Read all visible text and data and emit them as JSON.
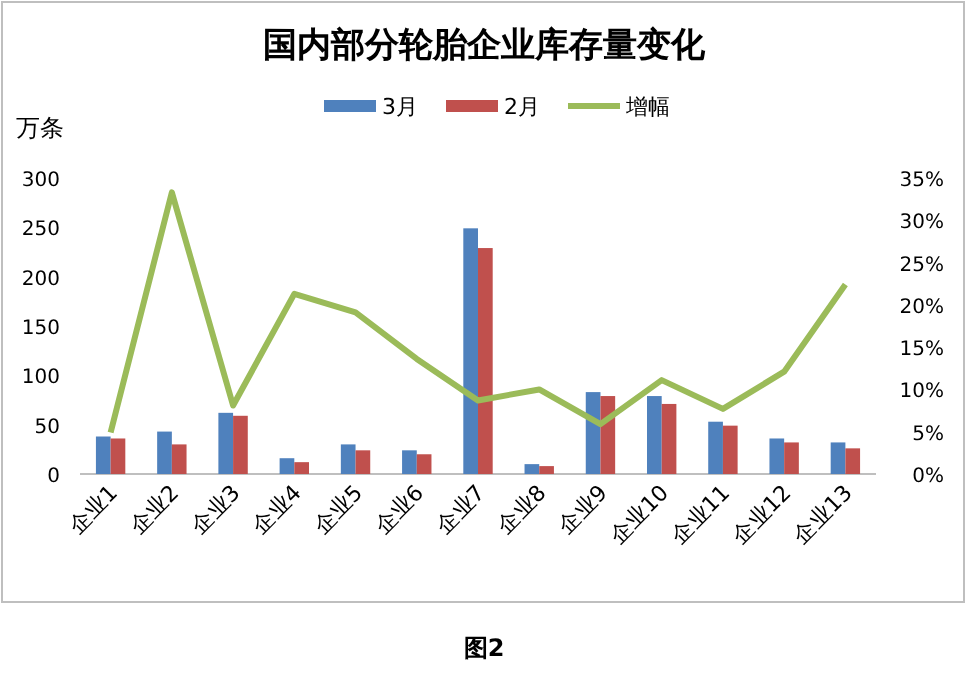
{
  "chart_data": {
    "type": "bar",
    "title": "国内部分轮胎企业库存量变化",
    "ylabel": "万条",
    "categories": [
      "企业1",
      "企业2",
      "企业3",
      "企业4",
      "企业5",
      "企业6",
      "企业7",
      "企业8",
      "企业9",
      "企业10",
      "企业11",
      "企业12",
      "企业13"
    ],
    "series": [
      {
        "name": "3月",
        "color": "#4f81bd",
        "values": [
          38,
          43,
          62,
          16,
          30,
          24,
          249,
          10,
          83,
          79,
          53,
          36,
          32
        ]
      },
      {
        "name": "2月",
        "color": "#c0504d",
        "values": [
          36,
          30,
          59,
          12,
          24,
          20,
          229,
          8,
          79,
          71,
          49,
          32,
          26
        ]
      },
      {
        "name": "增幅",
        "type": "line",
        "axis": "y2",
        "color": "#9bbb59",
        "values": [
          4.9,
          33.3,
          8.1,
          21.3,
          19.1,
          13.6,
          8.7,
          10,
          5.9,
          11.1,
          7.7,
          12.1,
          22.4
        ]
      }
    ],
    "ylim": [
      0,
      300
    ],
    "yticks": [
      0,
      50,
      100,
      150,
      200,
      250,
      300
    ],
    "y2lim": [
      0,
      35
    ],
    "y2ticks": [
      {
        "value": 0,
        "label": "0%"
      },
      {
        "value": 5,
        "label": "5%"
      },
      {
        "value": 10,
        "label": "10%"
      },
      {
        "value": 15,
        "label": "15%"
      },
      {
        "value": 20,
        "label": "20%"
      },
      {
        "value": 25,
        "label": "25%"
      },
      {
        "value": 30,
        "label": "30%"
      },
      {
        "value": 35,
        "label": "35%"
      }
    ],
    "legend": "top",
    "annotations": [
      "图2"
    ]
  }
}
